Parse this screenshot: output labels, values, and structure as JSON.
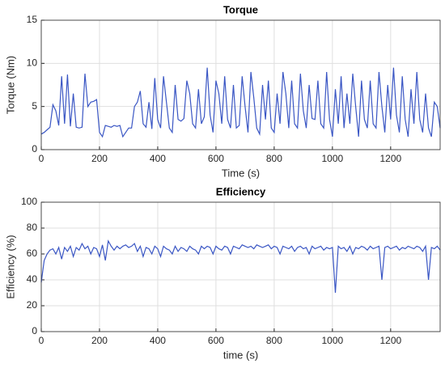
{
  "chart_data": [
    {
      "type": "line",
      "title": "Torque",
      "x_label": "Time (s)",
      "y_label": "Torque (Nm)",
      "x": [
        0,
        10,
        20,
        30,
        40,
        50,
        60,
        70,
        80,
        90,
        100,
        110,
        120,
        130,
        140,
        150,
        160,
        170,
        180,
        190,
        200,
        210,
        220,
        230,
        240,
        250,
        260,
        270,
        280,
        290,
        300,
        310,
        320,
        330,
        340,
        350,
        360,
        370,
        380,
        390,
        400,
        410,
        420,
        430,
        440,
        450,
        460,
        470,
        480,
        490,
        500,
        510,
        520,
        530,
        540,
        550,
        560,
        570,
        580,
        590,
        600,
        610,
        620,
        630,
        640,
        650,
        660,
        670,
        680,
        690,
        700,
        710,
        720,
        730,
        740,
        750,
        760,
        770,
        780,
        790,
        800,
        810,
        820,
        830,
        840,
        850,
        860,
        870,
        880,
        890,
        900,
        910,
        920,
        930,
        940,
        950,
        960,
        970,
        980,
        990,
        1000,
        1010,
        1020,
        1030,
        1040,
        1050,
        1060,
        1070,
        1080,
        1090,
        1100,
        1110,
        1120,
        1130,
        1140,
        1150,
        1160,
        1170,
        1180,
        1190,
        1200,
        1210,
        1220,
        1230,
        1240,
        1250,
        1260,
        1270,
        1280,
        1290,
        1300,
        1310,
        1320,
        1330,
        1340,
        1350,
        1360,
        1370
      ],
      "values": [
        1.8,
        2.0,
        2.3,
        2.6,
        5.2,
        4.5,
        2.8,
        8.5,
        3.0,
        8.7,
        2.7,
        6.5,
        2.6,
        2.5,
        2.6,
        8.8,
        5.0,
        5.5,
        5.6,
        5.8,
        2.0,
        1.5,
        2.8,
        2.7,
        2.6,
        2.8,
        2.7,
        2.8,
        1.5,
        2.0,
        2.5,
        2.5,
        5.0,
        5.5,
        6.8,
        3.0,
        2.6,
        5.5,
        2.4,
        8.3,
        3.5,
        2.5,
        8.5,
        5.5,
        2.5,
        2.0,
        7.5,
        3.5,
        3.3,
        3.6,
        8.0,
        6.5,
        3.0,
        2.5,
        7.0,
        3.0,
        3.8,
        9.5,
        4.0,
        2.0,
        8.0,
        6.5,
        3.0,
        8.5,
        3.5,
        2.5,
        7.5,
        2.5,
        2.8,
        8.5,
        5.0,
        2.0,
        9.0,
        6.0,
        2.5,
        1.8,
        7.5,
        3.5,
        8.0,
        2.5,
        2.0,
        6.5,
        3.0,
        9.0,
        6.5,
        2.5,
        8.0,
        3.0,
        2.5,
        8.8,
        4.5,
        2.5,
        7.5,
        3.6,
        3.5,
        8.0,
        3.0,
        2.5,
        9.0,
        3.5,
        1.5,
        7.0,
        3.0,
        8.5,
        2.5,
        6.5,
        3.0,
        8.8,
        5.0,
        1.5,
        8.0,
        3.5,
        2.5,
        8.0,
        3.0,
        2.5,
        9.0,
        5.0,
        2.0,
        7.5,
        3.5,
        9.5,
        4.0,
        2.0,
        8.5,
        3.5,
        1.5,
        7.0,
        3.0,
        9.0,
        3.5,
        2.0,
        6.5,
        2.5,
        1.5,
        5.5,
        5.0,
        2.5
      ],
      "color": "#3a56c4",
      "xlim": [
        0,
        1370
      ],
      "xticks": [
        0,
        200,
        400,
        600,
        800,
        1000,
        1200
      ],
      "ylim": [
        0,
        15
      ],
      "yticks": [
        0,
        5,
        10,
        15
      ],
      "grid": true
    },
    {
      "type": "line",
      "title": "Efficiency",
      "x_label": "time (s)",
      "y_label": "Efficiency (%)",
      "x": [
        0,
        10,
        20,
        30,
        40,
        50,
        60,
        70,
        80,
        90,
        100,
        110,
        120,
        130,
        140,
        150,
        160,
        170,
        180,
        190,
        200,
        210,
        220,
        230,
        240,
        250,
        260,
        270,
        280,
        290,
        300,
        310,
        320,
        330,
        340,
        350,
        360,
        370,
        380,
        390,
        400,
        410,
        420,
        430,
        440,
        450,
        460,
        470,
        480,
        490,
        500,
        510,
        520,
        530,
        540,
        550,
        560,
        570,
        580,
        590,
        600,
        610,
        620,
        630,
        640,
        650,
        660,
        670,
        680,
        690,
        700,
        710,
        720,
        730,
        740,
        750,
        760,
        770,
        780,
        790,
        800,
        810,
        820,
        830,
        840,
        850,
        860,
        870,
        880,
        890,
        900,
        910,
        920,
        930,
        940,
        950,
        960,
        970,
        980,
        990,
        1000,
        1010,
        1020,
        1030,
        1040,
        1050,
        1060,
        1070,
        1080,
        1090,
        1100,
        1110,
        1120,
        1130,
        1140,
        1150,
        1160,
        1170,
        1180,
        1190,
        1200,
        1210,
        1220,
        1230,
        1240,
        1250,
        1260,
        1270,
        1280,
        1290,
        1300,
        1310,
        1320,
        1330,
        1340,
        1350,
        1360,
        1370
      ],
      "values": [
        38,
        55,
        60,
        63,
        64,
        60,
        65,
        56,
        65,
        62,
        66,
        58,
        65,
        63,
        68,
        64,
        66,
        60,
        65,
        64,
        58,
        67,
        55,
        70,
        66,
        63,
        66,
        64,
        66,
        67,
        65,
        66,
        68,
        62,
        66,
        58,
        65,
        64,
        60,
        66,
        64,
        58,
        66,
        64,
        63,
        60,
        66,
        62,
        65,
        64,
        62,
        66,
        64,
        63,
        60,
        66,
        64,
        66,
        65,
        60,
        66,
        64,
        63,
        66,
        65,
        60,
        66,
        65,
        64,
        67,
        66,
        65,
        66,
        64,
        67,
        66,
        65,
        66,
        67,
        64,
        66,
        65,
        60,
        66,
        65,
        64,
        66,
        62,
        65,
        66,
        64,
        65,
        60,
        66,
        64,
        65,
        66,
        63,
        65,
        64,
        65,
        30,
        66,
        64,
        65,
        62,
        66,
        60,
        65,
        64,
        66,
        65,
        63,
        66,
        64,
        65,
        66,
        40,
        65,
        66,
        64,
        65,
        66,
        63,
        65,
        64,
        66,
        65,
        64,
        66,
        65,
        62,
        66,
        40,
        65,
        64,
        66,
        63
      ],
      "color": "#3a56c4",
      "xlim": [
        0,
        1370
      ],
      "xticks": [
        0,
        200,
        400,
        600,
        800,
        1000,
        1200
      ],
      "ylim": [
        0,
        100
      ],
      "yticks": [
        0,
        20,
        40,
        60,
        80,
        100
      ],
      "grid": true
    }
  ]
}
